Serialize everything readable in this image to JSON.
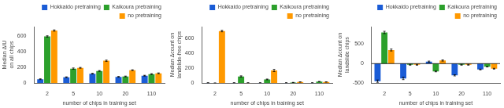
{
  "chart_data": [
    {
      "type": "bar",
      "x_label": "number of chips in training set",
      "y_label": "Median ΔIU on all chips",
      "categories": [
        "2",
        "5",
        "10",
        "20",
        "110"
      ],
      "series": [
        {
          "name": "Hokkaido pretraining",
          "color": "#1a5cd6",
          "values": [
            50,
            75,
            120,
            80,
            95
          ],
          "errors": [
            5,
            5,
            5,
            5,
            5
          ]
        },
        {
          "name": "Kaikoura pretraining",
          "color": "#2ca02c",
          "values": [
            595,
            185,
            155,
            85,
            115
          ],
          "errors": [
            8,
            8,
            5,
            5,
            5
          ]
        },
        {
          "name": "no pretraining",
          "color": "#ff9900",
          "values": [
            670,
            195,
            285,
            165,
            125
          ],
          "errors": [
            8,
            5,
            8,
            5,
            5
          ]
        }
      ],
      "ylim": [
        0,
        720
      ],
      "yticks": [
        0,
        200,
        400,
        600
      ],
      "grid": false,
      "legend": "upper right"
    },
    {
      "type": "bar",
      "x_label": "number of chips in training set",
      "y_label": "Median Δcount on landslide-free chips",
      "categories": [
        "2",
        "5",
        "10",
        "20",
        "110"
      ],
      "series": [
        {
          "name": "Hokkaido pretraining",
          "color": "#1a5cd6",
          "values": [
            3,
            3,
            3,
            3,
            3
          ],
          "errors": [
            2,
            2,
            2,
            2,
            2
          ]
        },
        {
          "name": "Kaikoura pretraining",
          "color": "#2ca02c",
          "values": [
            0,
            90,
            50,
            8,
            20
          ],
          "errors": [
            3,
            8,
            5,
            2,
            3
          ]
        },
        {
          "name": "no pretraining",
          "color": "#ff9900",
          "values": [
            700,
            3,
            170,
            15,
            15
          ],
          "errors": [
            10,
            2,
            15,
            2,
            2
          ]
        }
      ],
      "ylim": [
        0,
        760
      ],
      "yticks": [
        0,
        200,
        400,
        600
      ],
      "grid": false,
      "legend": "upper right"
    },
    {
      "type": "bar",
      "x_label": "number of chips in training set",
      "y_label": "Median Δcount on landslide chips",
      "categories": [
        "2",
        "5",
        "10",
        "20",
        "110"
      ],
      "series": [
        {
          "name": "Hokkaido pretraining",
          "color": "#1a5cd6",
          "values": [
            -450,
            -380,
            50,
            -300,
            -150
          ],
          "errors": [
            30,
            30,
            15,
            15,
            10
          ]
        },
        {
          "name": "Kaikoura pretraining",
          "color": "#2ca02c",
          "values": [
            800,
            -30,
            -200,
            -30,
            -80
          ],
          "errors": [
            30,
            10,
            10,
            10,
            5
          ]
        },
        {
          "name": "no pretraining",
          "color": "#ff9900",
          "values": [
            350,
            -30,
            80,
            -30,
            -130
          ],
          "errors": [
            25,
            10,
            15,
            10,
            10
          ]
        }
      ],
      "ylim": [
        -500,
        950
      ],
      "yticks": [
        -500,
        0,
        500
      ],
      "grid": false,
      "legend": "upper right"
    }
  ]
}
